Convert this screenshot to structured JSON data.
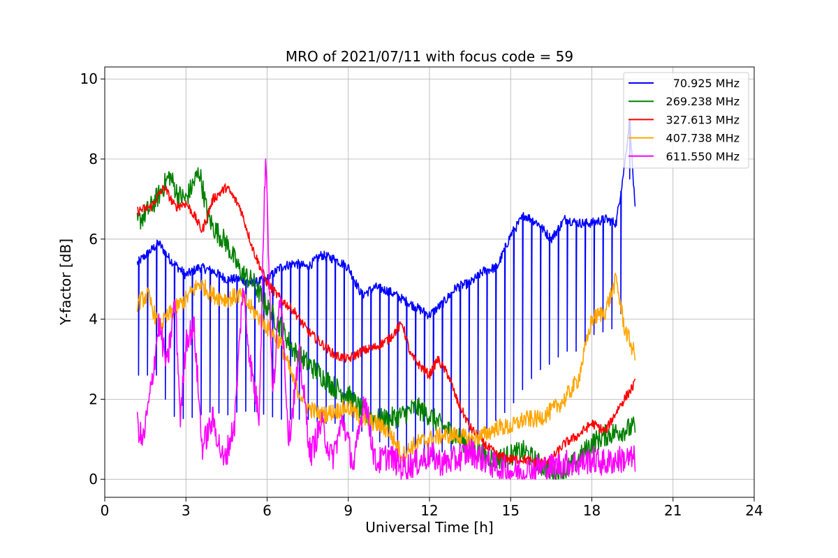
{
  "chart_data": {
    "type": "line",
    "title": "MRO of 2021/07/11 with focus code = 59",
    "xlabel": "Universal Time [h]",
    "ylabel": "Y-factor [dB]",
    "xlim": [
      0,
      24
    ],
    "ylim": [
      -0.45,
      10.3
    ],
    "xticks": [
      0,
      3,
      6,
      9,
      12,
      15,
      18,
      21,
      24
    ],
    "yticks": [
      0,
      2,
      4,
      6,
      8,
      10
    ],
    "xtick_labels": [
      "0",
      "3",
      "6",
      "9",
      "12",
      "15",
      "18",
      "21",
      "24"
    ],
    "ytick_labels": [
      "0",
      "2",
      "4",
      "6",
      "8",
      "10"
    ],
    "grid": true,
    "legend_position": "top-right",
    "series": [
      {
        "name": "70.925 MHz",
        "color": "#0000ff",
        "x": [
          1.2,
          2.0,
          2.4,
          3.0,
          3.5,
          4.0,
          4.5,
          5.0,
          5.5,
          6.0,
          6.5,
          7.0,
          7.5,
          8.0,
          8.5,
          9.0,
          9.5,
          10.0,
          10.5,
          11.0,
          11.5,
          12.0,
          12.5,
          13.0,
          13.5,
          14.0,
          14.5,
          15.0,
          15.5,
          16.0,
          16.5,
          17.0,
          17.5,
          18.0,
          18.5,
          18.9,
          19.2,
          19.4,
          19.6
        ],
        "y": [
          5.4,
          5.9,
          5.5,
          5.1,
          5.3,
          5.2,
          5.0,
          5.0,
          4.9,
          5.0,
          5.3,
          5.4,
          5.3,
          5.6,
          5.5,
          5.3,
          4.6,
          4.8,
          4.7,
          4.5,
          4.3,
          4.1,
          4.4,
          4.8,
          4.9,
          5.2,
          5.3,
          6.1,
          6.6,
          6.4,
          6.0,
          6.5,
          6.4,
          6.4,
          6.5,
          6.4,
          7.8,
          9.0,
          6.7
        ],
        "spike_y": [
          2.6,
          2.6,
          1.6,
          1.5,
          1.6,
          1.7,
          1.6,
          1.7,
          1.7,
          1.6,
          1.5,
          1.5,
          1.5,
          1.4,
          1.4,
          1.2,
          1.2,
          1.0,
          0.8,
          0.7,
          0.5,
          0.4,
          0.7,
          0.7,
          1.0,
          1.2,
          1.5,
          1.8,
          2.3,
          2.7,
          2.9,
          3.2,
          3.2,
          3.6,
          3.7,
          3.8,
          4.4,
          7.5,
          6.6
        ],
        "spike_every_h": 0.33
      },
      {
        "name": "269.238 MHz",
        "color": "#008000",
        "x": [
          1.2,
          1.7,
          2.0,
          2.4,
          2.7,
          3.0,
          3.5,
          3.8,
          4.0,
          4.5,
          5.0,
          5.5,
          6.0,
          6.5,
          7.0,
          7.5,
          8.0,
          8.5,
          9.0,
          9.5,
          10.0,
          10.5,
          11.0,
          11.5,
          12.0,
          12.5,
          13.0,
          13.5,
          14.0,
          14.5,
          15.0,
          15.5,
          16.0,
          16.5,
          17.0,
          17.5,
          18.0,
          18.5,
          19.0,
          19.6
        ],
        "y": [
          6.4,
          6.8,
          7.1,
          7.6,
          7.1,
          7.0,
          7.7,
          6.6,
          6.3,
          5.9,
          5.2,
          4.9,
          4.3,
          3.8,
          3.2,
          2.9,
          2.6,
          2.3,
          2.1,
          1.7,
          1.5,
          1.5,
          1.6,
          1.8,
          1.6,
          1.3,
          1.1,
          0.8,
          0.6,
          0.5,
          0.6,
          0.7,
          0.4,
          0.2,
          0.2,
          0.5,
          0.9,
          1.1,
          1.2,
          1.3
        ]
      },
      {
        "name": "327.613 MHz",
        "color": "#ff0000",
        "x": [
          1.2,
          1.7,
          2.2,
          2.6,
          3.0,
          3.3,
          3.6,
          4.0,
          4.5,
          5.0,
          5.5,
          6.0,
          6.5,
          7.0,
          7.5,
          8.0,
          8.5,
          9.0,
          9.5,
          10.0,
          10.5,
          11.0,
          11.3,
          11.7,
          12.0,
          12.3,
          12.7,
          13.0,
          13.5,
          14.0,
          14.5,
          15.0,
          15.5,
          16.0,
          16.5,
          17.0,
          17.5,
          18.0,
          18.5,
          19.0,
          19.6
        ],
        "y": [
          6.7,
          6.8,
          7.3,
          6.8,
          6.9,
          6.6,
          6.2,
          7.0,
          7.3,
          6.8,
          5.7,
          4.9,
          4.5,
          4.2,
          3.7,
          3.4,
          3.1,
          3.0,
          3.2,
          3.3,
          3.5,
          3.9,
          3.1,
          2.8,
          2.6,
          3.0,
          2.6,
          2.0,
          1.3,
          0.9,
          0.6,
          0.5,
          0.5,
          0.4,
          0.5,
          0.9,
          1.1,
          1.4,
          1.2,
          1.8,
          2.4
        ]
      },
      {
        "name": "407.738 MHz",
        "color": "#ffa500",
        "x": [
          1.2,
          1.6,
          2.0,
          2.5,
          3.0,
          3.5,
          4.0,
          4.5,
          5.0,
          5.5,
          6.0,
          6.5,
          7.0,
          7.5,
          8.0,
          8.5,
          9.0,
          9.5,
          10.0,
          10.5,
          11.0,
          11.5,
          12.0,
          12.5,
          13.0,
          13.5,
          14.0,
          14.5,
          15.0,
          15.5,
          16.0,
          16.5,
          17.0,
          17.5,
          18.0,
          18.5,
          18.9,
          19.2,
          19.6
        ],
        "y": [
          4.4,
          4.6,
          3.8,
          4.2,
          4.5,
          4.9,
          4.6,
          4.5,
          4.6,
          4.2,
          3.8,
          3.4,
          2.4,
          1.8,
          1.6,
          1.7,
          1.8,
          1.5,
          1.4,
          1.2,
          0.6,
          0.9,
          1.0,
          1.1,
          1.1,
          1.0,
          1.1,
          1.3,
          1.3,
          1.5,
          1.5,
          1.7,
          2.0,
          2.5,
          4.0,
          4.2,
          5.0,
          3.8,
          3.1
        ]
      },
      {
        "name": "611.550 MHz",
        "color": "#ff00ff",
        "x": [
          1.2,
          1.4,
          1.7,
          2.0,
          2.3,
          2.6,
          2.8,
          3.0,
          3.3,
          3.6,
          4.0,
          4.4,
          4.8,
          5.1,
          5.4,
          5.7,
          5.95,
          6.2,
          6.5,
          6.8,
          7.2,
          7.6,
          8.0,
          8.4,
          8.8,
          9.2,
          9.6,
          10.0,
          10.5,
          11.0,
          11.5,
          12.0,
          12.5,
          13.0,
          13.5,
          14.0,
          14.5,
          15.0,
          15.5,
          16.0,
          16.5,
          17.0,
          17.5,
          18.0,
          18.5,
          19.0,
          19.6
        ],
        "y": [
          1.4,
          0.9,
          2.2,
          3.9,
          2.8,
          4.5,
          1.5,
          3.5,
          3.8,
          0.8,
          1.5,
          0.4,
          1.4,
          4.8,
          2.8,
          1.6,
          8.3,
          2.0,
          4.8,
          1.0,
          3.1,
          0.6,
          1.4,
          0.5,
          1.5,
          0.3,
          2.1,
          0.4,
          0.6,
          0.3,
          0.4,
          0.6,
          0.4,
          0.5,
          0.7,
          0.5,
          0.3,
          0.2,
          0.2,
          0.3,
          0.3,
          0.4,
          0.4,
          0.5,
          0.4,
          0.5,
          0.5
        ]
      }
    ]
  }
}
